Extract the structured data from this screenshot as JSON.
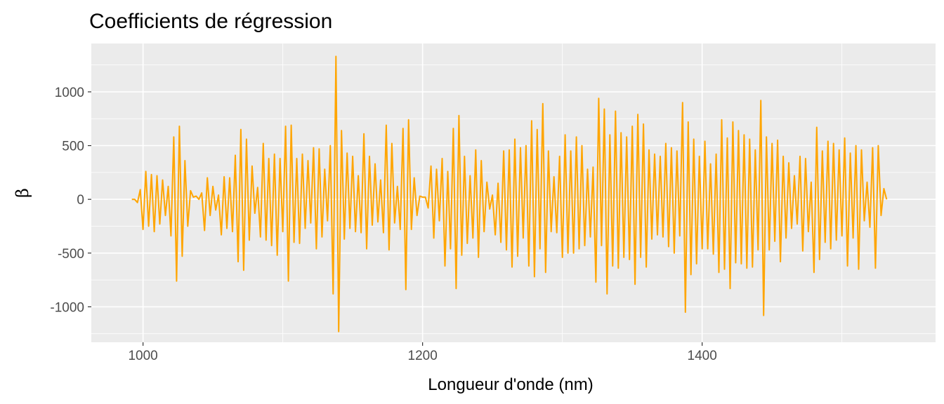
{
  "chart_data": {
    "type": "line",
    "title": "Coefficients de régression",
    "xlabel": "Longueur d'onde (nm)",
    "ylabel": "β",
    "xlim": [
      963,
      1567
    ],
    "ylim": [
      -1330,
      1450
    ],
    "x_ticks": [
      1000,
      1200,
      1400
    ],
    "x_tick_labels": [
      "1000",
      "1200",
      "1400"
    ],
    "y_ticks": [
      1000,
      500,
      0,
      -500,
      -1000
    ],
    "y_tick_labels": [
      "1000",
      "500",
      "0",
      "-500",
      "-1000"
    ],
    "grid": true,
    "legend": "none",
    "line_color": "#FFA500",
    "panel_background": "#EBEBEB",
    "series": [
      {
        "x_start": 992,
        "x_step": 2,
        "y": [
          0,
          0,
          -30,
          90,
          -280,
          260,
          -250,
          230,
          -300,
          220,
          -230,
          180,
          -150,
          120,
          -340,
          580,
          -760,
          680,
          -530,
          360,
          -250,
          80,
          20,
          30,
          0,
          60,
          -290,
          200,
          -150,
          120,
          -100,
          40,
          -330,
          210,
          -270,
          200,
          -300,
          410,
          -580,
          650,
          -660,
          560,
          -380,
          310,
          -130,
          110,
          -350,
          520,
          -380,
          380,
          -430,
          420,
          -520,
          380,
          -300,
          680,
          -760,
          690,
          -400,
          380,
          -410,
          420,
          -270,
          360,
          -220,
          480,
          -460,
          470,
          -350,
          280,
          -200,
          500,
          -880,
          1330,
          -1230,
          640,
          -370,
          430,
          -270,
          400,
          -300,
          220,
          -310,
          610,
          -460,
          400,
          -240,
          330,
          -210,
          180,
          -310,
          690,
          -470,
          520,
          -220,
          120,
          -280,
          660,
          -840,
          740,
          -280,
          200,
          -150,
          30,
          20,
          20,
          -80,
          310,
          -360,
          280,
          -200,
          380,
          -620,
          260,
          -460,
          660,
          -830,
          780,
          -520,
          400,
          -410,
          220,
          -360,
          460,
          -540,
          360,
          -300,
          160,
          -90,
          40,
          -330,
          150,
          -400,
          450,
          -470,
          460,
          -630,
          560,
          -530,
          480,
          -360,
          500,
          -620,
          730,
          -720,
          650,
          -460,
          890,
          -680,
          450,
          -300,
          210,
          -310,
          400,
          -540,
          600,
          -500,
          450,
          -500,
          580,
          -460,
          500,
          -430,
          280,
          -350,
          300,
          -770,
          940,
          -430,
          840,
          -880,
          600,
          -620,
          820,
          -640,
          620,
          -540,
          580,
          -560,
          680,
          -790,
          790,
          -540,
          700,
          -630,
          460,
          -370,
          420,
          -330,
          400,
          -350,
          520,
          -440,
          480,
          -500,
          450,
          -340,
          900,
          -1050,
          720,
          -700,
          560,
          -600,
          400,
          -460,
          540,
          -460,
          330,
          -510,
          420,
          -680,
          740,
          -650,
          570,
          -830,
          720,
          -590,
          640,
          -600,
          600,
          -640,
          560,
          -630,
          460,
          -470,
          920,
          -1080,
          580,
          -470,
          520,
          -390,
          550,
          -580,
          400,
          -360,
          340,
          -270,
          220,
          -230,
          400,
          -480,
          380,
          -300,
          160,
          -680,
          670,
          -560,
          450,
          -400,
          540,
          -460,
          520,
          -380,
          460,
          -340,
          570,
          -620,
          430,
          -360,
          500,
          -650,
          460,
          -200,
          160,
          -260,
          480,
          -640,
          500,
          -150,
          100,
          0
        ]
      }
    ]
  }
}
